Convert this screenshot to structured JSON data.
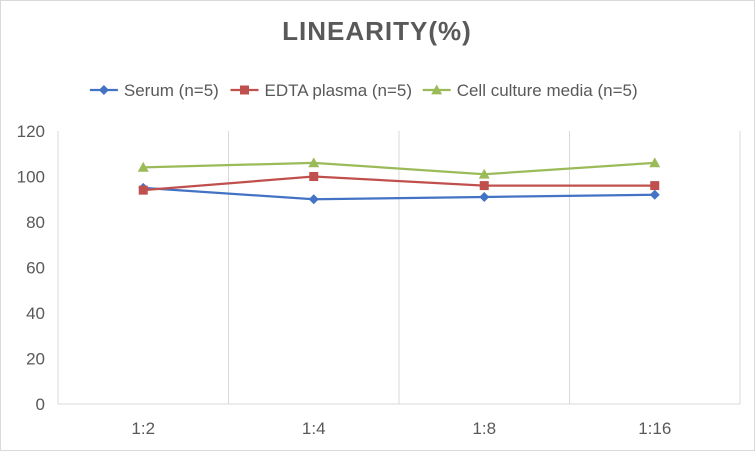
{
  "chart_data": {
    "type": "line",
    "title": "LINEARITY(%)",
    "xlabel": "",
    "ylabel": "",
    "categories": [
      "1:2",
      "1:4",
      "1:8",
      "1:16"
    ],
    "ylim": [
      0,
      120
    ],
    "yticks": [
      0,
      20,
      40,
      60,
      80,
      100,
      120
    ],
    "grid": "vertical",
    "legend_position": "top",
    "series": [
      {
        "name": "Serum (n=5)",
        "values": [
          95,
          90,
          91,
          92
        ],
        "color": "#4472c4",
        "marker": "diamond"
      },
      {
        "name": "EDTA plasma (n=5)",
        "values": [
          94,
          100,
          96,
          96
        ],
        "color": "#c0504d",
        "marker": "square"
      },
      {
        "name": "Cell culture media (n=5)",
        "values": [
          104,
          106,
          101,
          106
        ],
        "color": "#9bbb59",
        "marker": "triangle"
      }
    ]
  }
}
